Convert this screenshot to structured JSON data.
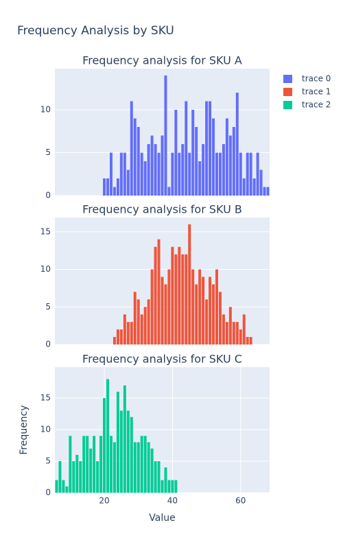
{
  "title": "Frequency Analysis by SKU",
  "chart_data": [
    {
      "type": "bar",
      "title": "Frequency analysis for SKU A",
      "x": [
        20,
        21,
        22,
        23,
        24,
        25,
        26,
        27,
        28,
        29,
        30,
        31,
        32,
        33,
        34,
        35,
        36,
        37,
        38,
        39,
        40,
        41,
        42,
        43,
        44,
        45,
        46,
        47,
        48,
        49,
        50,
        51,
        52,
        53,
        54,
        55,
        56,
        57,
        58,
        59,
        60,
        61,
        62,
        63,
        64,
        65,
        66,
        67,
        68
      ],
      "series": [
        {
          "name": "trace 0",
          "color": "#636efa",
          "values": [
            2,
            2,
            5,
            1,
            2,
            5,
            5,
            3,
            11,
            9,
            8,
            5,
            4,
            6,
            7,
            6,
            5,
            7,
            14,
            1,
            5,
            10,
            5,
            6,
            11,
            5,
            10,
            8,
            4,
            6,
            11,
            11,
            9,
            5,
            5,
            6,
            9,
            7,
            8,
            12,
            5,
            2,
            5,
            5,
            2,
            5,
            3,
            1,
            1
          ]
        }
      ],
      "xlim": [
        5.5,
        68.5
      ],
      "ylim": [
        0,
        14.8
      ],
      "yticks": [
        0,
        5,
        10
      ],
      "grid": true
    },
    {
      "type": "bar",
      "title": "Frequency analysis for SKU B",
      "x": [
        23,
        24,
        25,
        26,
        27,
        28,
        29,
        30,
        31,
        32,
        33,
        34,
        35,
        36,
        37,
        38,
        39,
        40,
        41,
        42,
        43,
        44,
        45,
        46,
        47,
        48,
        49,
        50,
        51,
        52,
        53,
        54,
        55,
        56,
        57,
        58,
        59,
        60,
        61,
        62,
        63
      ],
      "series": [
        {
          "name": "trace 1",
          "color": "#EF553B",
          "values": [
            1,
            2,
            2,
            4,
            3,
            3,
            7,
            6,
            4,
            5,
            6,
            10,
            13,
            14,
            9,
            8,
            10,
            13,
            12,
            13,
            12,
            12,
            16,
            10,
            8,
            10,
            9,
            6,
            9,
            8,
            10,
            7,
            4,
            3,
            5,
            3,
            3,
            2,
            4,
            1,
            1
          ]
        }
      ],
      "xlim": [
        5.5,
        68.5
      ],
      "ylim": [
        0,
        16.9
      ],
      "yticks": [
        0,
        5,
        10,
        15
      ],
      "grid": true
    },
    {
      "type": "bar",
      "title": "Frequency analysis for SKU C",
      "x": [
        6,
        7,
        8,
        9,
        10,
        11,
        12,
        13,
        14,
        15,
        16,
        17,
        18,
        19,
        20,
        21,
        22,
        23,
        24,
        25,
        26,
        27,
        28,
        29,
        30,
        31,
        32,
        33,
        34,
        35,
        36,
        37,
        38,
        39,
        40,
        41
      ],
      "series": [
        {
          "name": "trace 2",
          "color": "#00cc96",
          "values": [
            2,
            5,
            2,
            1,
            9,
            5,
            6,
            5,
            9,
            9,
            7,
            9,
            5,
            9,
            15,
            18,
            9,
            8,
            16,
            13,
            17,
            13,
            12,
            8,
            8,
            9,
            9,
            8,
            7,
            5,
            5,
            2,
            4,
            2,
            2,
            2
          ]
        }
      ],
      "xlim": [
        5.5,
        68.5
      ],
      "xticks": [
        20,
        40,
        60
      ],
      "ylim": [
        0,
        19.9
      ],
      "yticks": [
        0,
        5,
        10,
        15
      ],
      "grid": true,
      "xlabel": "Value",
      "ylabel": "Frequency"
    }
  ]
}
